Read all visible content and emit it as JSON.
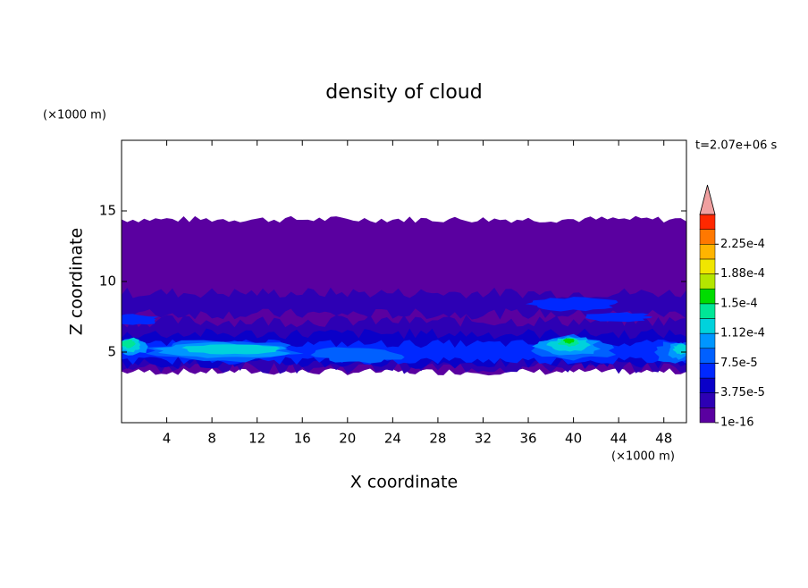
{
  "chart_data": {
    "type": "contour",
    "title": "density of cloud",
    "x_label": "X coordinate",
    "y_label": "Z coordinate",
    "x_unit": "(×1000 m)",
    "y_unit": "(×1000 m)",
    "time_label": "t=2.07e+06 s",
    "xlim": [
      0,
      50
    ],
    "xticks": [
      4,
      8,
      12,
      16,
      20,
      24,
      28,
      32,
      36,
      40,
      44,
      48
    ],
    "ylim": [
      0,
      20
    ],
    "yticks": [
      5,
      10,
      15
    ],
    "colorbar": {
      "clim": [
        1e-16,
        0.0002625
      ],
      "ticks": [
        {
          "value": 1e-16,
          "label": "1e-16"
        },
        {
          "value": 3.75e-05,
          "label": "3.75e-5"
        },
        {
          "value": 7.5e-05,
          "label": "7.5e-5"
        },
        {
          "value": 0.0001125,
          "label": "1.12e-4"
        },
        {
          "value": 0.00015,
          "label": "1.5e-4"
        },
        {
          "value": 0.0001875,
          "label": "1.88e-4"
        },
        {
          "value": 0.000225,
          "label": "2.25e-4"
        }
      ],
      "colors": [
        "#5a00a0",
        "#2d00b4",
        "#0a00c8",
        "#0028ff",
        "#0060ff",
        "#0096ff",
        "#00d2dc",
        "#00e696",
        "#00dc00",
        "#b4e600",
        "#f0e600",
        "#ffb400",
        "#ff7800",
        "#ff2800"
      ],
      "over_color": "#f0a0a0"
    }
  }
}
